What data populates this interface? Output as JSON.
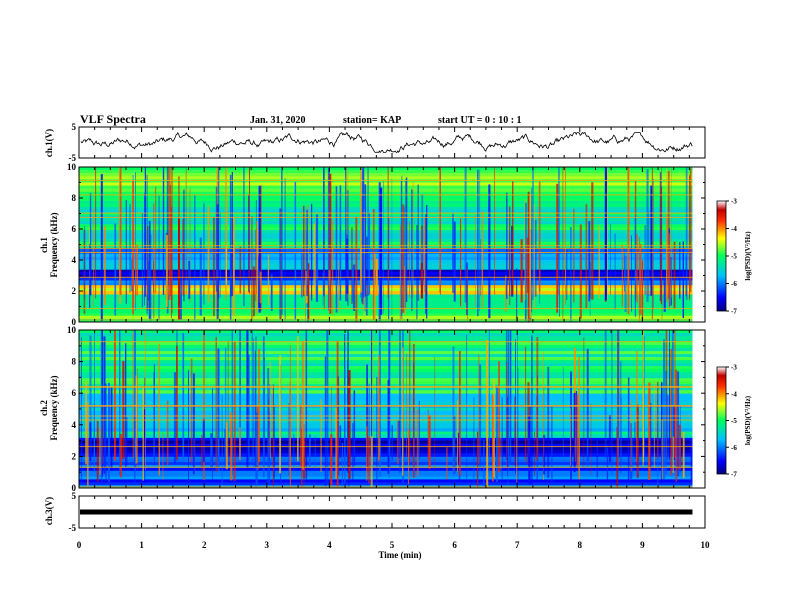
{
  "header": {
    "title": "VLF Spectra",
    "date": "Jan. 31, 2020",
    "station": "station= KAP",
    "start": "start UT =  0 : 10 : 1"
  },
  "chart_data": [
    {
      "type": "line",
      "panel": "ch1-waveform",
      "ylabel": "ch.1(V)",
      "ylim": [
        -5,
        5
      ],
      "yticks": [
        "5",
        "-5"
      ],
      "xlim": [
        0,
        10
      ],
      "trace": "noisy waveform roughly between -2 and 2 V spanning 0 to 9.8 min"
    },
    {
      "type": "heatmap",
      "panel": "ch1-spectrogram",
      "ylabel": "ch.1\nFrequency (kHz)",
      "ylim": [
        0,
        10
      ],
      "yticks": [
        "0",
        "2",
        "4",
        "6",
        "8",
        "10"
      ],
      "xlim": [
        0,
        10
      ],
      "data_end_min": 9.8,
      "bands_khz": [
        {
          "from": 0.0,
          "to": 0.6,
          "level": -4.8
        },
        {
          "from": 0.6,
          "to": 1.8,
          "level": -5.3
        },
        {
          "from": 1.8,
          "to": 2.4,
          "level": -4.2
        },
        {
          "from": 2.4,
          "to": 2.7,
          "level": -5.6
        },
        {
          "from": 2.7,
          "to": 3.4,
          "level": -6.5
        },
        {
          "from": 3.4,
          "to": 3.8,
          "level": -5.2
        },
        {
          "from": 3.8,
          "to": 4.8,
          "level": -5.8
        },
        {
          "from": 4.8,
          "to": 8.0,
          "level": -5.2
        },
        {
          "from": 8.0,
          "to": 10.0,
          "level": -4.8
        }
      ],
      "colorbar": {
        "label": "log(PSD)(V²/Hz)",
        "range": [
          -7,
          -3
        ],
        "ticks": [
          "-3",
          "-4",
          "-5",
          "-6",
          "-7"
        ]
      }
    },
    {
      "type": "heatmap",
      "panel": "ch2-spectrogram",
      "ylabel": "ch.2\nFrequency (kHz)",
      "ylim": [
        0,
        10
      ],
      "yticks": [
        "0",
        "2",
        "4",
        "6",
        "8",
        "10"
      ],
      "xlim": [
        0,
        10
      ],
      "data_end_min": 9.8,
      "bands_khz": [
        {
          "from": 0.0,
          "to": 2.0,
          "level": -6.2
        },
        {
          "from": 2.0,
          "to": 3.2,
          "level": -6.6
        },
        {
          "from": 3.2,
          "to": 3.6,
          "level": -5.2
        },
        {
          "from": 3.6,
          "to": 6.0,
          "level": -5.6
        },
        {
          "from": 6.0,
          "to": 10.0,
          "level": -5.1
        }
      ],
      "colorbar": {
        "label": "log(PSD)(V²/Hz)",
        "range": [
          -7,
          -3
        ],
        "ticks": [
          "-3",
          "-4",
          "-5",
          "-6",
          "-7"
        ]
      }
    },
    {
      "type": "line",
      "panel": "ch3-waveform",
      "ylabel": "ch.3(V)",
      "ylim": [
        -5,
        5
      ],
      "yticks": [
        "5",
        "-5"
      ],
      "xlim": [
        0,
        10
      ],
      "level_v": 0,
      "trace": "constant thick line near 0 V"
    }
  ],
  "xaxis": {
    "label": "Time (min)",
    "ticks": [
      "0",
      "1",
      "2",
      "3",
      "4",
      "5",
      "6",
      "7",
      "8",
      "9",
      "10"
    ]
  }
}
